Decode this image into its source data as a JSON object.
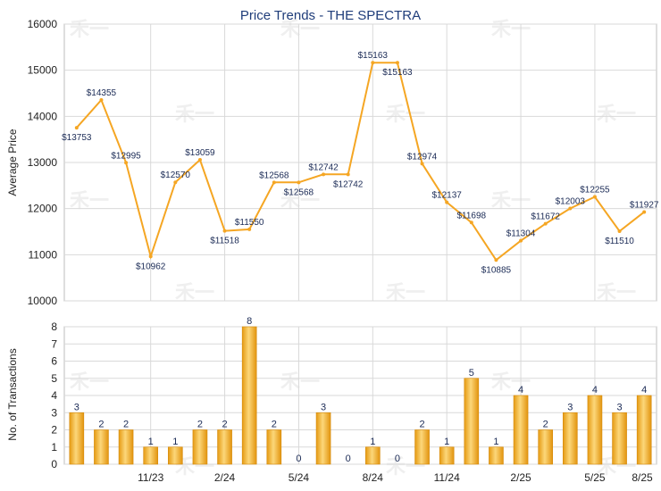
{
  "chart_data": [
    {
      "type": "line",
      "title": "Price Trends - THE SPECTRA",
      "ylabel": "Average Price",
      "ylim": [
        10000,
        16000
      ],
      "yticks": [
        10000,
        11000,
        12000,
        13000,
        14000,
        15000,
        16000
      ],
      "series": [
        {
          "color": "#f5a623",
          "values": [
            13753,
            14355,
            12995,
            10962,
            12570,
            13059,
            11518,
            11550,
            12568,
            12568,
            12742,
            12742,
            15163,
            15163,
            12974,
            12137,
            11698,
            10885,
            11304,
            11672,
            12003,
            12255,
            11510,
            11927
          ],
          "labels": [
            "$13753",
            "$14355",
            "$12995",
            "$10962",
            "$12570",
            "$13059",
            "$11518",
            "$11550",
            "$12568",
            "$12568",
            "$12742",
            "$12742",
            "$15163",
            "$15163",
            "$12974",
            "$12137",
            "$11698",
            "$10885",
            "$11304",
            "$11672",
            "$12003",
            "$12255",
            "$11510",
            "$11927"
          ]
        }
      ]
    },
    {
      "type": "bar",
      "ylabel": "No. of Transactions",
      "ylim": [
        0,
        8
      ],
      "yticks": [
        0,
        1,
        2,
        3,
        4,
        5,
        6,
        7,
        8
      ],
      "xticks": [
        "11/23",
        "2/24",
        "5/24",
        "8/24",
        "11/24",
        "2/25",
        "5/25",
        "8/25"
      ],
      "bar_color": "#f2b530",
      "values": [
        3,
        2,
        2,
        1,
        1,
        2,
        2,
        8,
        2,
        0,
        3,
        0,
        1,
        0,
        2,
        1,
        5,
        1,
        4,
        2,
        3,
        4,
        3,
        4
      ],
      "labels": [
        "3",
        "2",
        "2",
        "1",
        "1",
        "2",
        "2",
        "8",
        "2",
        "0",
        "3",
        "0",
        "1",
        "0",
        "2",
        "1",
        "5",
        "1",
        "4",
        "2",
        "3",
        "4",
        "3",
        "4"
      ]
    }
  ]
}
